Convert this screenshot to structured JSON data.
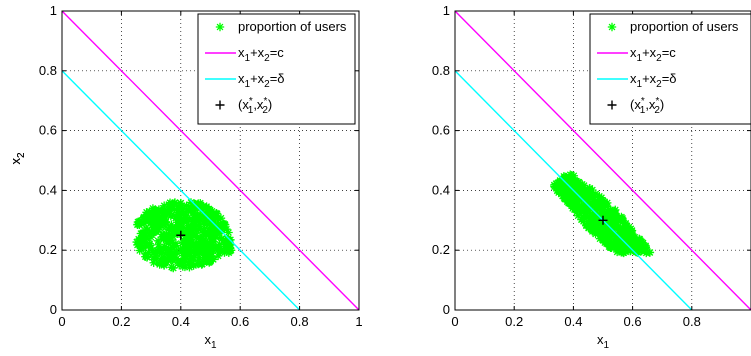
{
  "chart_data": [
    {
      "type": "scatter",
      "title": "",
      "xlabel": "x",
      "xlabel_sub": "1",
      "ylabel": "x",
      "ylabel_sub": "2",
      "xlim": [
        0,
        1
      ],
      "ylim": [
        0,
        1
      ],
      "xticks": [
        "0",
        "0.2",
        "0.4",
        "0.6",
        "0.8",
        "1"
      ],
      "yticks": [
        "0",
        "0.2",
        "0.4",
        "0.6",
        "0.8",
        "1"
      ],
      "grid": true,
      "legend_position": "top-right",
      "legend": [
        {
          "label": "proportion of users",
          "marker": "star",
          "color": "#00ff00"
        },
        {
          "label": "x1+x2=c",
          "marker": "line",
          "color": "#ff00ff"
        },
        {
          "label": "x1+x2=δ",
          "marker": "line",
          "color": "#00ffff"
        },
        {
          "label": "(x1*,x2*)",
          "marker": "plus",
          "color": "#000000"
        }
      ],
      "series": [
        {
          "name": "x1+x2=c",
          "type": "line",
          "color": "#ff00ff",
          "points": [
            [
              0,
              1
            ],
            [
              1,
              0
            ]
          ]
        },
        {
          "name": "x1+x2=δ",
          "type": "line",
          "color": "#00ffff",
          "points": [
            [
              0,
              0.8
            ],
            [
              0.8,
              0
            ]
          ]
        },
        {
          "name": "(x1*,x2*)",
          "type": "marker",
          "color": "#000000",
          "points": [
            [
              0.4,
              0.25
            ]
          ]
        },
        {
          "name": "proportion of users",
          "type": "star",
          "color": "#00ff00",
          "cluster": {
            "x_range": [
              0.25,
              0.58
            ],
            "y_range": [
              0.14,
              0.36
            ],
            "center": [
              0.4,
              0.25
            ],
            "shape": "blob"
          }
        }
      ]
    },
    {
      "type": "scatter",
      "title": "",
      "xlabel": "x",
      "xlabel_sub": "1",
      "ylabel": "x",
      "ylabel_sub": "2",
      "xlim": [
        0,
        1
      ],
      "ylim": [
        0,
        1
      ],
      "xticks": [
        "0",
        "0.2",
        "0.4",
        "0.6",
        "0.8"
      ],
      "yticks": [
        "0",
        "0.2",
        "0.4",
        "0.6",
        "0.8",
        "1"
      ],
      "grid": true,
      "legend_position": "top-right",
      "legend": [
        {
          "label": "proportion of users",
          "marker": "star",
          "color": "#00ff00"
        },
        {
          "label": "x1+x2=c",
          "marker": "line",
          "color": "#ff00ff"
        },
        {
          "label": "x1+x2=δ",
          "marker": "line",
          "color": "#00ffff"
        },
        {
          "label": "(x1*,x2*)",
          "marker": "plus",
          "color": "#000000"
        }
      ],
      "series": [
        {
          "name": "x1+x2=c",
          "type": "line",
          "color": "#ff00ff",
          "points": [
            [
              0,
              1
            ],
            [
              1,
              0
            ]
          ]
        },
        {
          "name": "x1+x2=δ",
          "type": "line",
          "color": "#00ffff",
          "points": [
            [
              0,
              0.8
            ],
            [
              0.8,
              0
            ]
          ]
        },
        {
          "name": "(x1*,x2*)",
          "type": "marker",
          "color": "#000000",
          "points": [
            [
              0.5,
              0.3
            ]
          ]
        },
        {
          "name": "proportion of users",
          "type": "star",
          "color": "#00ff00",
          "cluster": {
            "x_range": [
              0.33,
              0.66
            ],
            "y_range": [
              0.19,
              0.46
            ],
            "center": [
              0.5,
              0.3
            ],
            "shape": "diagonal"
          }
        }
      ]
    }
  ]
}
